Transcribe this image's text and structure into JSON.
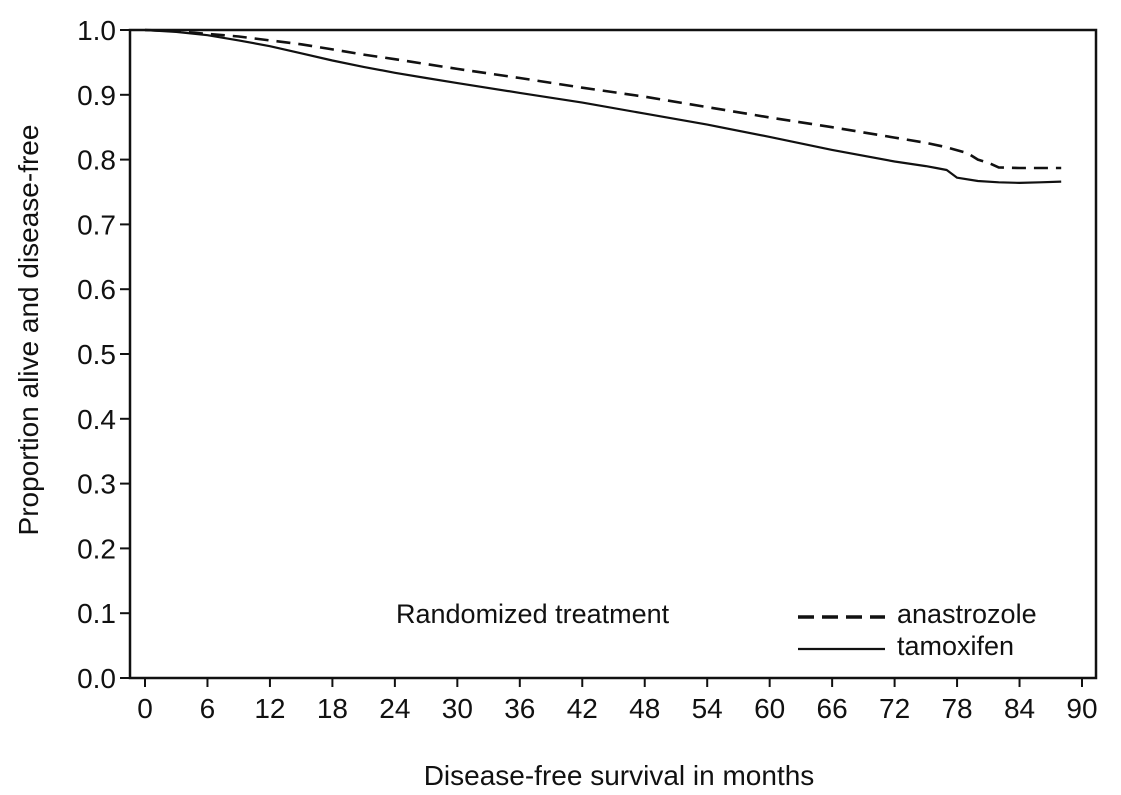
{
  "chart_data": {
    "type": "line",
    "title": "",
    "xlabel": "Disease-free survival in months",
    "ylabel": "Proportion alive and disease-free",
    "xlim": [
      0,
      90
    ],
    "ylim": [
      0.0,
      1.0
    ],
    "x_ticks": [
      "0",
      "6",
      "12",
      "18",
      "24",
      "30",
      "36",
      "42",
      "48",
      "54",
      "60",
      "66",
      "72",
      "78",
      "84",
      "90"
    ],
    "y_ticks": [
      "0.0",
      "0.1",
      "0.2",
      "0.3",
      "0.4",
      "0.5",
      "0.6",
      "0.7",
      "0.8",
      "0.9",
      "1.0"
    ],
    "grid": false,
    "legend": {
      "title": "Randomized treatment",
      "position": "bottom-right"
    },
    "series": [
      {
        "name": "anastrozole",
        "line_style": "dashed",
        "color": "#111111",
        "x": [
          0,
          3,
          6,
          9,
          12,
          15,
          18,
          21,
          24,
          30,
          36,
          42,
          48,
          54,
          60,
          66,
          72,
          75,
          77,
          79,
          80,
          81,
          82,
          84,
          86,
          88
        ],
        "y": [
          1.0,
          0.998,
          0.994,
          0.99,
          0.984,
          0.978,
          0.97,
          0.962,
          0.955,
          0.94,
          0.926,
          0.911,
          0.897,
          0.881,
          0.865,
          0.85,
          0.834,
          0.826,
          0.819,
          0.81,
          0.8,
          0.795,
          0.788,
          0.787,
          0.787,
          0.787
        ]
      },
      {
        "name": "tamoxifen",
        "line_style": "solid",
        "color": "#111111",
        "x": [
          0,
          3,
          6,
          9,
          12,
          15,
          18,
          21,
          24,
          27,
          30,
          36,
          42,
          48,
          54,
          60,
          66,
          72,
          75,
          76,
          77,
          78,
          80,
          82,
          84,
          86,
          88
        ],
        "y": [
          1.0,
          0.997,
          0.992,
          0.984,
          0.975,
          0.964,
          0.953,
          0.943,
          0.934,
          0.926,
          0.918,
          0.903,
          0.888,
          0.871,
          0.854,
          0.835,
          0.815,
          0.797,
          0.79,
          0.787,
          0.784,
          0.772,
          0.767,
          0.765,
          0.764,
          0.765,
          0.766
        ]
      }
    ]
  }
}
